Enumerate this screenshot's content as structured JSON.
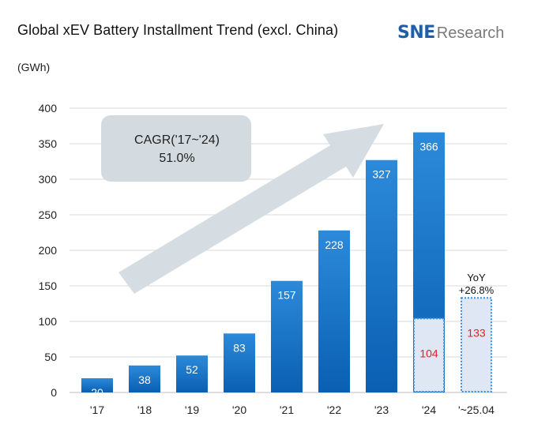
{
  "header": {
    "title": "Global xEV Battery Installment Trend (excl. China)",
    "logo_mark": "SNE",
    "logo_text": "Research",
    "unit": "(GWh)"
  },
  "colors": {
    "bar_top": "#2c8ad9",
    "bar_bottom": "#0a5fb3",
    "partial_fill": "#dfe6f4",
    "partial_border": "#3a8ee0",
    "label_red": "#e0202a",
    "grid": "#d9d9d9",
    "callout": "#d3dbe0",
    "arrow": "#d6dde2"
  },
  "chart_data": {
    "type": "bar",
    "categories": [
      "'17",
      "'18",
      "'19",
      "'20",
      "'21",
      "'22",
      "'23",
      "'24",
      "'~25.04"
    ],
    "values": [
      20,
      38,
      52,
      83,
      157,
      228,
      327,
      366,
      null
    ],
    "partial_values": [
      null,
      null,
      null,
      null,
      null,
      null,
      null,
      104,
      133
    ],
    "ylim": [
      0,
      400
    ],
    "yticks": [
      0,
      50,
      100,
      150,
      200,
      250,
      300,
      350,
      400
    ],
    "ylabel": "(GWh)",
    "grid": true,
    "annotations": {
      "cagr_line1": "CAGR('17~'24)",
      "cagr_line2": "51.0%",
      "yoy_line1": "YoY",
      "yoy_line2": "+26.8%"
    }
  }
}
